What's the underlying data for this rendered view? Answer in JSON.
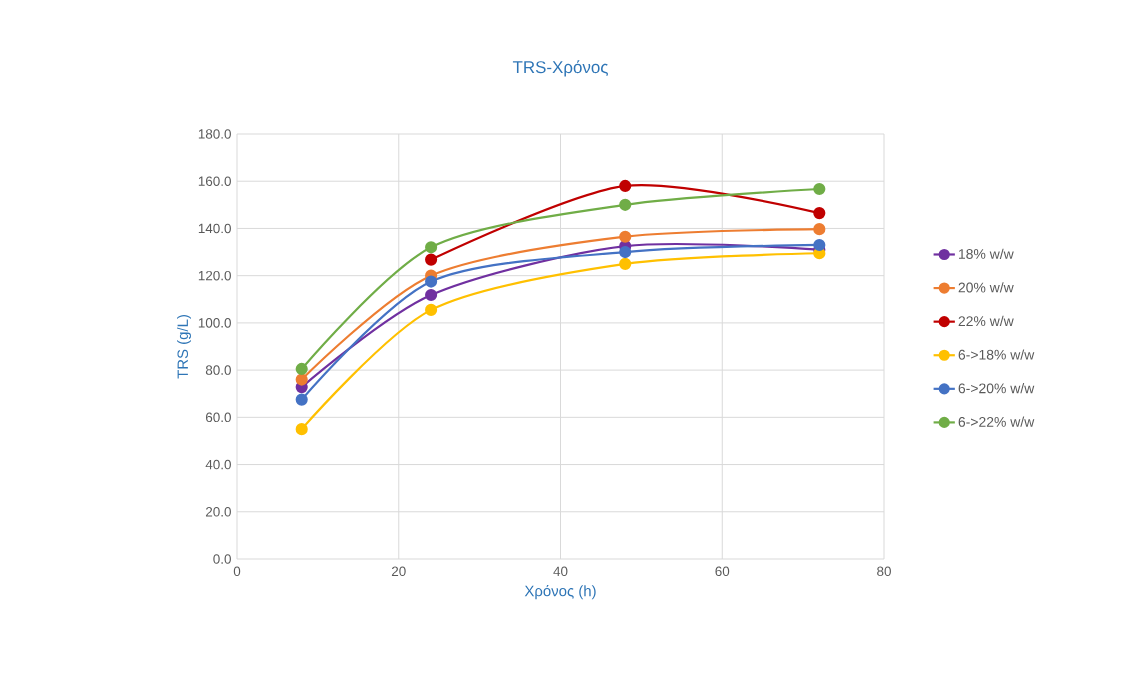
{
  "chart_data": {
    "type": "line",
    "title": "TRS-Χρόνος",
    "xlabel": "Χρόνος (h)",
    "ylabel": "TRS (g/L)",
    "x": [
      8,
      24,
      48,
      72
    ],
    "series": [
      {
        "name": "18% w/w",
        "color": "#7030a0",
        "values": [
          72.8,
          111.8,
          132.5,
          131
        ]
      },
      {
        "name": "20% w/w",
        "color": "#ed7d31",
        "values": [
          76,
          120,
          136.5,
          139.7
        ]
      },
      {
        "name": "22% w/w",
        "color": "#c00000",
        "values": [
          null,
          126.8,
          158,
          146.5
        ]
      },
      {
        "name": "6->18% w/w",
        "color": "#ffc000",
        "values": [
          55,
          105.5,
          125,
          129.5
        ]
      },
      {
        "name": "6->20% w/w",
        "color": "#4472c4",
        "values": [
          67.5,
          117.5,
          130,
          133
        ]
      },
      {
        "name": "6->22% w/w",
        "color": "#70ad47",
        "values": [
          80.5,
          132,
          150,
          156.7
        ]
      }
    ],
    "xlim": [
      0,
      80
    ],
    "xticks": [
      0,
      20,
      40,
      60,
      80
    ],
    "ylim": [
      0,
      180
    ],
    "yticks": [
      {
        "value": 0,
        "label": "0.0"
      },
      {
        "value": 20,
        "label": "20.0"
      },
      {
        "value": 40,
        "label": "40.0"
      },
      {
        "value": 60,
        "label": "60.0"
      },
      {
        "value": 80,
        "label": "80.0"
      },
      {
        "value": 100,
        "label": "100.0"
      },
      {
        "value": 120,
        "label": "120.0"
      },
      {
        "value": 140,
        "label": "140.0"
      },
      {
        "value": 160,
        "label": "160.0"
      },
      {
        "value": 180,
        "label": "180.0"
      }
    ],
    "grid": true,
    "legend": "right",
    "marker": "circle",
    "line_style": "solid"
  }
}
